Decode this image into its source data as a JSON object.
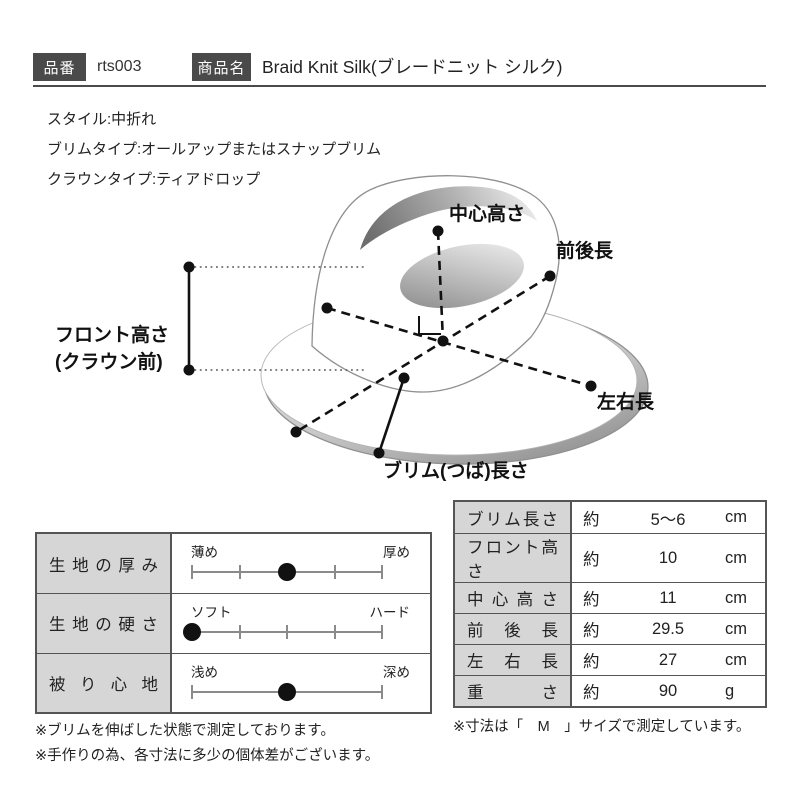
{
  "header": {
    "part_number_label": "品番",
    "part_number_value": "rts003",
    "product_name_label": "商品名",
    "product_name_value": "Braid Knit Silk(ブレードニット シルク)"
  },
  "specs": {
    "style": "スタイル:中折れ",
    "brim_type": "ブリムタイプ:オールアップまたはスナップブリム",
    "crown_type": "クラウンタイプ:ティアドロップ"
  },
  "diagram": {
    "labels": {
      "center_height": "中心高さ",
      "front_back_length": "前後長",
      "front_height_line1": "フロント高さ",
      "front_height_line2": "(クラウン前)",
      "left_right_length": "左右長",
      "brim_length": "ブリム(つば)長さ"
    }
  },
  "attributes": {
    "rows": [
      {
        "label": "生地の厚み",
        "left": "薄め",
        "right": "厚め",
        "position": 0.5
      },
      {
        "label": "生地の硬さ",
        "left": "ソフト",
        "right": "ハード",
        "position": 0.0
      },
      {
        "label": "被 り 心 地",
        "left": "浅め",
        "right": "深め",
        "position": 0.5
      }
    ]
  },
  "measurements": {
    "rows": [
      {
        "label": "ブリム長さ",
        "prefix": "約",
        "value": "5〜6",
        "unit": "cm"
      },
      {
        "label": "フロント高さ",
        "prefix": "約",
        "value": "10",
        "unit": "cm"
      },
      {
        "label": "中 心 高 さ",
        "prefix": "約",
        "value": "11",
        "unit": "cm"
      },
      {
        "label": "前 後 長",
        "prefix": "約",
        "value": "29.5",
        "unit": "cm"
      },
      {
        "label": "左 右 長",
        "prefix": "約",
        "value": "27",
        "unit": "cm"
      },
      {
        "label": "重 さ",
        "prefix": "約",
        "value": "90",
        "unit": "g"
      }
    ]
  },
  "notes": {
    "left1": "※ブリムを伸ばした状態で測定しております。",
    "left2": "※手作りの為、各寸法に多少の個体差がございます。",
    "right": "※寸法は「　M　」サイズで測定しています。"
  },
  "colors": {
    "header_box": "#4a4a4a",
    "table_label_bg": "#d6d6d6",
    "border": "#555555",
    "text": "#222222"
  }
}
